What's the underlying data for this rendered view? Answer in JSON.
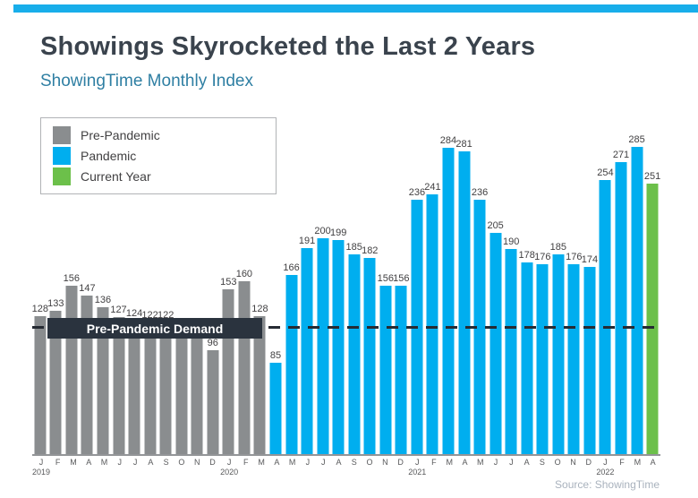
{
  "header": {
    "title": "Showings Skyrocketed the Last 2 Years",
    "subtitle": "ShowingTime Monthly Index"
  },
  "legend": {
    "items": [
      {
        "label": "Pre-Pandemic",
        "color": "#8a8d8f"
      },
      {
        "label": "Pandemic",
        "color": "#00aeef"
      },
      {
        "label": "Current Year",
        "color": "#6cc04a"
      }
    ]
  },
  "banner": {
    "label": "Pre-Pandemic Demand"
  },
  "source": {
    "label": "Source: ShowingTime"
  },
  "colors": {
    "top_strip": "#18aeea",
    "pre": "#8a8d8f",
    "pandemic": "#00aeef",
    "current": "#6cc04a",
    "reference_line": "#262b33",
    "banner_bg": "#2a333e"
  },
  "chart_data": {
    "type": "bar",
    "title": "Showings Skyrocketed the Last 2 Years",
    "subtitle": "ShowingTime Monthly Index",
    "ylim": [
      0,
      285
    ],
    "grid": false,
    "legend_position": "top-left",
    "reference_line": {
      "value": 117,
      "label": "Pre-Pandemic Demand",
      "style": "dashed"
    },
    "bars": [
      {
        "month": "J",
        "year_label": "2019",
        "value": 128,
        "phase": "pre"
      },
      {
        "month": "F",
        "value": 133,
        "phase": "pre"
      },
      {
        "month": "M",
        "value": 156,
        "phase": "pre"
      },
      {
        "month": "A",
        "value": 147,
        "phase": "pre"
      },
      {
        "month": "M",
        "value": 136,
        "phase": "pre"
      },
      {
        "month": "J",
        "value": 127,
        "phase": "pre"
      },
      {
        "month": "J",
        "value": 124,
        "phase": "pre"
      },
      {
        "month": "A",
        "value": 122,
        "phase": "pre"
      },
      {
        "month": "S",
        "value": 122,
        "phase": "pre"
      },
      {
        "month": "O",
        "value": 118,
        "phase": "pre",
        "show_label": false
      },
      {
        "month": "N",
        "value": 108,
        "phase": "pre",
        "show_label": false
      },
      {
        "month": "D",
        "value": 96,
        "phase": "pre"
      },
      {
        "month": "J",
        "year_label": "2020",
        "value": 153,
        "phase": "pre"
      },
      {
        "month": "F",
        "value": 160,
        "phase": "pre"
      },
      {
        "month": "M",
        "value": 128,
        "phase": "pre"
      },
      {
        "month": "A",
        "value": 85,
        "phase": "pandemic"
      },
      {
        "month": "M",
        "value": 166,
        "phase": "pandemic"
      },
      {
        "month": "J",
        "value": 191,
        "phase": "pandemic"
      },
      {
        "month": "J",
        "value": 200,
        "phase": "pandemic"
      },
      {
        "month": "A",
        "value": 199,
        "phase": "pandemic"
      },
      {
        "month": "S",
        "value": 185,
        "phase": "pandemic"
      },
      {
        "month": "O",
        "value": 182,
        "phase": "pandemic"
      },
      {
        "month": "N",
        "value": 156,
        "phase": "pandemic"
      },
      {
        "month": "D",
        "value": 156,
        "phase": "pandemic"
      },
      {
        "month": "J",
        "year_label": "2021",
        "value": 236,
        "phase": "pandemic"
      },
      {
        "month": "F",
        "value": 241,
        "phase": "pandemic"
      },
      {
        "month": "M",
        "value": 284,
        "phase": "pandemic"
      },
      {
        "month": "A",
        "value": 281,
        "phase": "pandemic"
      },
      {
        "month": "M",
        "value": 236,
        "phase": "pandemic"
      },
      {
        "month": "J",
        "value": 205,
        "phase": "pandemic"
      },
      {
        "month": "J",
        "value": 190,
        "phase": "pandemic"
      },
      {
        "month": "A",
        "value": 178,
        "phase": "pandemic"
      },
      {
        "month": "S",
        "value": 176,
        "phase": "pandemic"
      },
      {
        "month": "O",
        "value": 185,
        "phase": "pandemic"
      },
      {
        "month": "N",
        "value": 176,
        "phase": "pandemic"
      },
      {
        "month": "D",
        "value": 174,
        "phase": "pandemic"
      },
      {
        "month": "J",
        "year_label": "2022",
        "value": 254,
        "phase": "pandemic"
      },
      {
        "month": "F",
        "value": 271,
        "phase": "pandemic"
      },
      {
        "month": "M",
        "value": 285,
        "phase": "pandemic"
      },
      {
        "month": "A",
        "value": 251,
        "phase": "current"
      }
    ]
  }
}
